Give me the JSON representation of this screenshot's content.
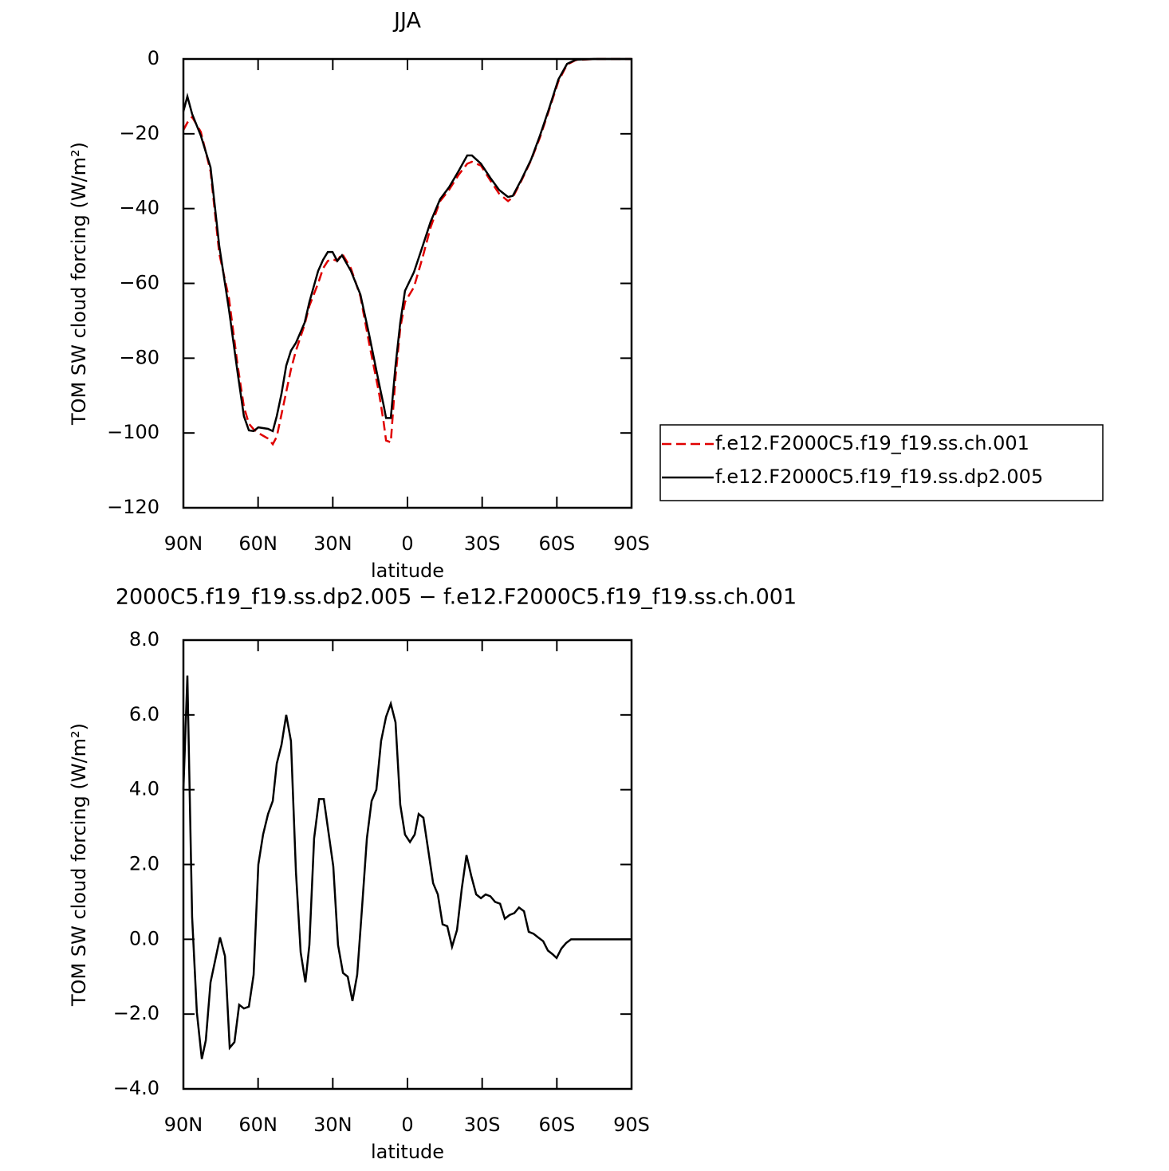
{
  "chart_data": [
    {
      "type": "line",
      "title": "JJA",
      "xlabel": "latitude",
      "ylabel": "TOM SW cloud forcing (W/m²)",
      "xlim": [
        90,
        -90
      ],
      "xticks": [
        {
          "value": 90,
          "label": "90N"
        },
        {
          "value": 60,
          "label": "60N"
        },
        {
          "value": 30,
          "label": "30N"
        },
        0,
        {
          "value": -30,
          "label": "30S"
        },
        {
          "value": -60,
          "label": "60S"
        },
        {
          "value": -90,
          "label": "90S"
        }
      ],
      "ylim": [
        -120,
        0
      ],
      "yticks": [
        0,
        {
          "value": -20,
          "label": "−20"
        },
        {
          "value": -40,
          "label": "−40"
        },
        {
          "value": -60,
          "label": "−60"
        },
        {
          "value": -80,
          "label": "−80"
        },
        {
          "value": -100,
          "label": "−100"
        },
        {
          "value": -120,
          "label": "−120"
        }
      ],
      "legend": "right",
      "x": [
        90,
        88.4,
        86.5,
        83,
        79.1,
        75.6,
        71.7,
        68.2,
        65.7,
        63.7,
        61.8,
        59.9,
        56,
        54.1,
        52.5,
        50.6,
        48.7,
        46.8,
        44.8,
        41.3,
        39.4,
        35.9,
        33.9,
        32,
        30.1,
        28.2,
        26.3,
        22.7,
        18.9,
        15.4,
        11.5,
        9.6,
        8.6,
        6.7,
        4.8,
        2.9,
        1,
        -2.6,
        -6.1,
        -9.3,
        -13.1,
        -16.7,
        -20.5,
        -24,
        -25.9,
        -29.5,
        -33.3,
        -36.8,
        -40.4,
        -42.3,
        -45.8,
        -49.7,
        -53.2,
        -56.7,
        -60.6,
        -64.1,
        -67.6,
        -75,
        -90
      ],
      "series": [
        {
          "name": "f.e12.F2000C5.f19_f19.ss.ch.001",
          "color": "#e00000",
          "line_style": "dashed",
          "values": [
            -19,
            -17,
            -15.5,
            -19.5,
            -30,
            -52,
            -64,
            -82,
            -93,
            -97.5,
            -99,
            -100,
            -101.5,
            -103,
            -101,
            -95,
            -89,
            -83,
            -78,
            -71,
            -66,
            -60,
            -56,
            -54,
            -53.5,
            -54,
            -52,
            -56,
            -63.5,
            -76,
            -89,
            -97,
            -102,
            -102.5,
            -85,
            -72,
            -65,
            -61,
            -53,
            -45,
            -38,
            -35,
            -31,
            -28,
            -27.5,
            -28.5,
            -32.5,
            -36,
            -38,
            -37,
            -32.5,
            -27,
            -21,
            -14,
            -6,
            -1.5,
            -0.3,
            0,
            0
          ]
        },
        {
          "name": "f.e12.F2000C5.f19_f19.ss.dp2.005",
          "color": "#000000",
          "line_style": "solid",
          "values": [
            -14,
            -10,
            -14.7,
            -20.5,
            -29,
            -50,
            -67,
            -84,
            -95.5,
            -99.3,
            -99.5,
            -98.5,
            -98.9,
            -99.5,
            -95.5,
            -89.5,
            -82,
            -78,
            -75.9,
            -70.5,
            -65,
            -56.7,
            -53.7,
            -51.6,
            -51.6,
            -54,
            -52.5,
            -56.7,
            -63,
            -73.7,
            -86.5,
            -92.5,
            -96,
            -96,
            -82,
            -70.5,
            -62,
            -57,
            -50,
            -43.5,
            -37.5,
            -34.3,
            -30,
            -25.8,
            -25.8,
            -28,
            -31.8,
            -35,
            -36.9,
            -36.6,
            -32.2,
            -26.8,
            -20.5,
            -13.6,
            -5.5,
            -1.3,
            -0.2,
            0,
            0
          ]
        }
      ]
    },
    {
      "type": "line",
      "title": "2000C5.f19_f19.ss.dp2.005 − f.e12.F2000C5.f19_f19.ss.ch.001",
      "xlabel": "latitude",
      "ylabel": "TOM SW cloud forcing (W/m²)",
      "xlim": [
        90,
        -90
      ],
      "xticks": [
        {
          "value": 90,
          "label": "90N"
        },
        {
          "value": 60,
          "label": "60N"
        },
        {
          "value": 30,
          "label": "30N"
        },
        0,
        {
          "value": -30,
          "label": "30S"
        },
        {
          "value": -60,
          "label": "60S"
        },
        {
          "value": -90,
          "label": "90S"
        }
      ],
      "ylim": [
        -4,
        8
      ],
      "yticks": [
        {
          "value": 8,
          "label": "8.0"
        },
        {
          "value": 6,
          "label": "6.0"
        },
        {
          "value": 4,
          "label": "4.0"
        },
        {
          "value": 2,
          "label": "2.0"
        },
        {
          "value": 0,
          "label": "0.0"
        },
        {
          "value": -2,
          "label": "−2.0"
        },
        {
          "value": -4,
          "label": "−4.0"
        }
      ],
      "x": [
        90,
        88.4,
        86.5,
        84.6,
        82.6,
        81,
        79.1,
        77.2,
        75.3,
        73.3,
        71.4,
        69.5,
        67.6,
        65.7,
        63.7,
        61.8,
        59.9,
        58,
        56,
        54.1,
        52.5,
        50.6,
        48.7,
        46.8,
        44.8,
        42.9,
        41,
        39.4,
        37.5,
        35.5,
        33.6,
        31.7,
        29.8,
        27.9,
        25.9,
        24,
        22.1,
        20.2,
        18.3,
        16.3,
        14.4,
        12.5,
        10.6,
        8.6,
        6.7,
        4.8,
        2.9,
        1,
        -1,
        -2.9,
        -4.5,
        -6.4,
        -8.3,
        -10.3,
        -12.2,
        -14.1,
        -16,
        -17.9,
        -19.9,
        -21.8,
        -23.7,
        -25.6,
        -27.6,
        -29.5,
        -31.4,
        -33.3,
        -35.2,
        -37.2,
        -39.1,
        -41,
        -42.9,
        -44.8,
        -46.8,
        -48.7,
        -50.6,
        -52.5,
        -54.5,
        -56.4,
        -58.3,
        -59.9,
        -61.8,
        -63.7,
        -65.7,
        -69.5,
        -90
      ],
      "series": [
        {
          "color": "#000000",
          "line_style": "solid",
          "values": [
            4,
            7.05,
            0.6,
            -1.95,
            -3.2,
            -2.7,
            -1.15,
            -0.55,
            0.05,
            -0.45,
            -2.9,
            -2.75,
            -1.75,
            -1.85,
            -1.8,
            -0.95,
            2,
            2.8,
            3.35,
            3.7,
            4.7,
            5.2,
            6,
            5.3,
            1.8,
            -0.35,
            -1.15,
            -0.15,
            2.7,
            3.75,
            3.75,
            2.85,
            1.95,
            -0.15,
            -0.9,
            -1,
            -1.65,
            -0.95,
            0.8,
            2.7,
            3.7,
            4,
            5.3,
            5.95,
            6.3,
            5.8,
            3.6,
            2.8,
            2.6,
            2.8,
            3.35,
            3.25,
            2.4,
            1.5,
            1.2,
            0.4,
            0.35,
            -0.2,
            0.25,
            1.35,
            2.25,
            1.7,
            1.2,
            1.1,
            1.2,
            1.15,
            1,
            0.95,
            0.55,
            0.65,
            0.7,
            0.85,
            0.75,
            0.2,
            0.15,
            0.05,
            -0.05,
            -0.3,
            -0.4,
            -0.5,
            -0.25,
            -0.1,
            0,
            0,
            0
          ]
        }
      ]
    }
  ]
}
